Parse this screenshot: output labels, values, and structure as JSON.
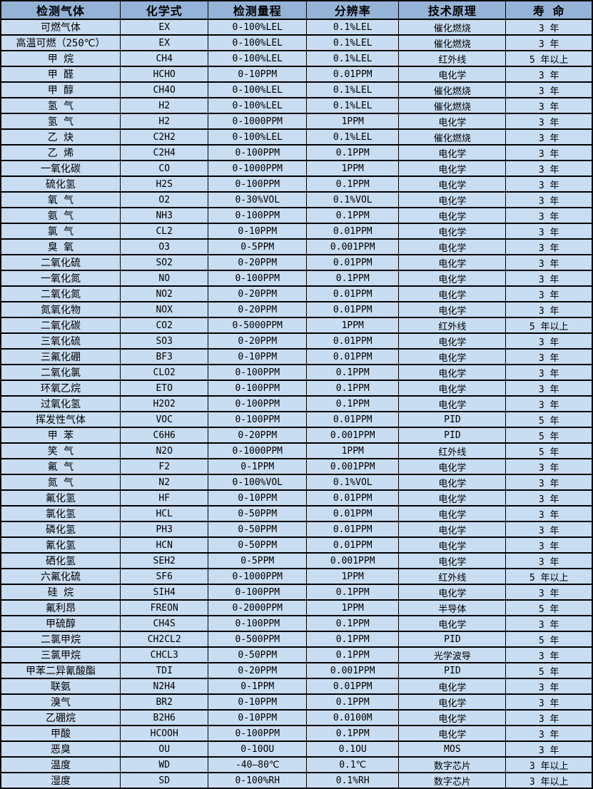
{
  "colors": {
    "header_bg": "#95B3D7",
    "row_bg": "#C9DDF2",
    "border": "#000000",
    "text": "#000000"
  },
  "table": {
    "columns": [
      "检测气体",
      "化学式",
      "检测量程",
      "分辨率",
      "技术原理",
      "寿 命"
    ],
    "rows": [
      [
        "可燃气体",
        "EX",
        "0-100%LEL",
        "0.1%LEL",
        "催化燃烧",
        "3 年"
      ],
      [
        "高温可燃（250℃）",
        "EX",
        "0-100%LEL",
        "0.1%LEL",
        "催化燃烧",
        "3 年"
      ],
      [
        "甲 烷",
        "CH4",
        "0-100%LEL",
        "0.1%LEL",
        "红外线",
        "5 年以上"
      ],
      [
        "甲 醛",
        "HCHO",
        "0-10PPM",
        "0.01PPM",
        "电化学",
        "3 年"
      ],
      [
        "甲 醇",
        "CH4O",
        "0-100%LEL",
        "0.1%LEL",
        "催化燃烧",
        "3 年"
      ],
      [
        "氢 气",
        "H2",
        "0-100%LEL",
        "0.1%LEL",
        "催化燃烧",
        "3 年"
      ],
      [
        "氢 气",
        "H2",
        "0-1000PPM",
        "1PPM",
        "电化学",
        "3 年"
      ],
      [
        "乙 炔",
        "C2H2",
        "0-100%LEL",
        "0.1%LEL",
        "催化燃烧",
        "3 年"
      ],
      [
        "乙 烯",
        "C2H4",
        "0-100PPM",
        "0.1PPM",
        "电化学",
        "3 年"
      ],
      [
        "一氧化碳",
        "CO",
        "0-1000PPM",
        "1PPM",
        "电化学",
        "3 年"
      ],
      [
        "硫化氢",
        "H2S",
        "0-100PPM",
        "0.1PPM",
        "电化学",
        "3 年"
      ],
      [
        "氧 气",
        "O2",
        "0-30%VOL",
        "0.1%VOL",
        "电化学",
        "3 年"
      ],
      [
        "氨 气",
        "NH3",
        "0-100PPM",
        "0.1PPM",
        "电化学",
        "3 年"
      ],
      [
        "氯 气",
        "CL2",
        "0-10PPM",
        "0.01PPM",
        "电化学",
        "3 年"
      ],
      [
        "臭 氧",
        "O3",
        "0-5PPM",
        "0.001PPM",
        "电化学",
        "3 年"
      ],
      [
        "二氧化硫",
        "SO2",
        "0-20PPM",
        "0.01PPM",
        "电化学",
        "3 年"
      ],
      [
        "一氧化氮",
        "NO",
        "0-100PPM",
        "0.1PPM",
        "电化学",
        "3 年"
      ],
      [
        "二氧化氮",
        "NO2",
        "0-20PPM",
        "0.01PPM",
        "电化学",
        "3 年"
      ],
      [
        "氮氧化物",
        "NOX",
        "0-20PPM",
        "0.01PPM",
        "电化学",
        "3 年"
      ],
      [
        "二氧化碳",
        "CO2",
        "0-5000PPM",
        "1PPM",
        "红外线",
        "5 年以上"
      ],
      [
        "三氧化硫",
        "SO3",
        "0-20PPM",
        "0.01PPM",
        "电化学",
        "3 年"
      ],
      [
        "三氟化硼",
        "BF3",
        "0-10PPM",
        "0.01PPM",
        "电化学",
        "3 年"
      ],
      [
        "二氧化氯",
        "CLO2",
        "0-100PPM",
        "0.1PPM",
        "电化学",
        "3 年"
      ],
      [
        "环氧乙烷",
        "ETO",
        "0-100PPM",
        "0.1PPM",
        "电化学",
        "3 年"
      ],
      [
        "过氧化氢",
        "H2O2",
        "0-100PPM",
        "0.1PPM",
        "电化学",
        "3 年"
      ],
      [
        "挥发性气体",
        "VOC",
        "0-100PPM",
        "0.01PPM",
        "PID",
        "5 年"
      ],
      [
        "甲 苯",
        "C6H6",
        "0-20PPM",
        "0.001PPM",
        "PID",
        "5 年"
      ],
      [
        "笑 气",
        "N2O",
        "0-1000PPM",
        "1PPM",
        "红外线",
        "5 年"
      ],
      [
        "氟 气",
        "F2",
        "0-1PPM",
        "0.001PPM",
        "电化学",
        "3 年"
      ],
      [
        "氮 气",
        "N2",
        "0-100%VOL",
        "0.1%VOL",
        "电化学",
        "3 年"
      ],
      [
        "氟化氢",
        "HF",
        "0-10PPM",
        "0.01PPM",
        "电化学",
        "3 年"
      ],
      [
        "氯化氢",
        "HCL",
        "0-50PPM",
        "0.01PPM",
        "电化学",
        "3 年"
      ],
      [
        "磷化氢",
        "PH3",
        "0-50PPM",
        "0.01PPM",
        "电化学",
        "3 年"
      ],
      [
        "氰化氢",
        "HCN",
        "0-50PPM",
        "0.01PPM",
        "电化学",
        "3 年"
      ],
      [
        "硒化氢",
        "SEH2",
        "0-5PPM",
        "0.001PPM",
        "电化学",
        "3 年"
      ],
      [
        "六氟化硫",
        "SF6",
        "0-1000PPM",
        "1PPM",
        "红外线",
        "5 年以上"
      ],
      [
        "硅 烷",
        "SIH4",
        "0-100PPM",
        "0.1PPM",
        "电化学",
        "3 年"
      ],
      [
        "氟利昂",
        "FREON",
        "0-2000PPM",
        "1PPM",
        "半导体",
        "5 年"
      ],
      [
        "甲硫醇",
        "CH4S",
        "0-100PPM",
        "0.1PPM",
        "电化学",
        "3 年"
      ],
      [
        "二氯甲烷",
        "CH2CL2",
        "0-500PPM",
        "0.1PPM",
        "PID",
        "5 年"
      ],
      [
        "三氯甲烷",
        "CHCL3",
        "0-50PPM",
        "0.1PPM",
        "光学波导",
        "3 年"
      ],
      [
        "甲苯二异氰酸酯",
        "TDI",
        "0-20PPM",
        "0.001PPM",
        "PID",
        "5 年"
      ],
      [
        "联氨",
        "N2H4",
        "0-1PPM",
        "0.01PPM",
        "电化学",
        "3 年"
      ],
      [
        "溴气",
        "BR2",
        "0-10PPM",
        "0.1PPM",
        "电化学",
        "3 年"
      ],
      [
        "乙硼烷",
        "B2H6",
        "0-10PPM",
        "0.0100M",
        "电化学",
        "3 年"
      ],
      [
        "甲酸",
        "HCOOH",
        "0-100PPM",
        "0.1PPM",
        "电化学",
        "3 年"
      ],
      [
        "恶臭",
        "OU",
        "0-10OU",
        "0.1OU",
        "MOS",
        "3 年"
      ],
      [
        "温度",
        "WD",
        "-40—80℃",
        "0.1℃",
        "数字芯片",
        "3 年以上"
      ],
      [
        "湿度",
        "SD",
        "0-100%RH",
        "0.1%RH",
        "数字芯片",
        "3 年以上"
      ]
    ]
  }
}
